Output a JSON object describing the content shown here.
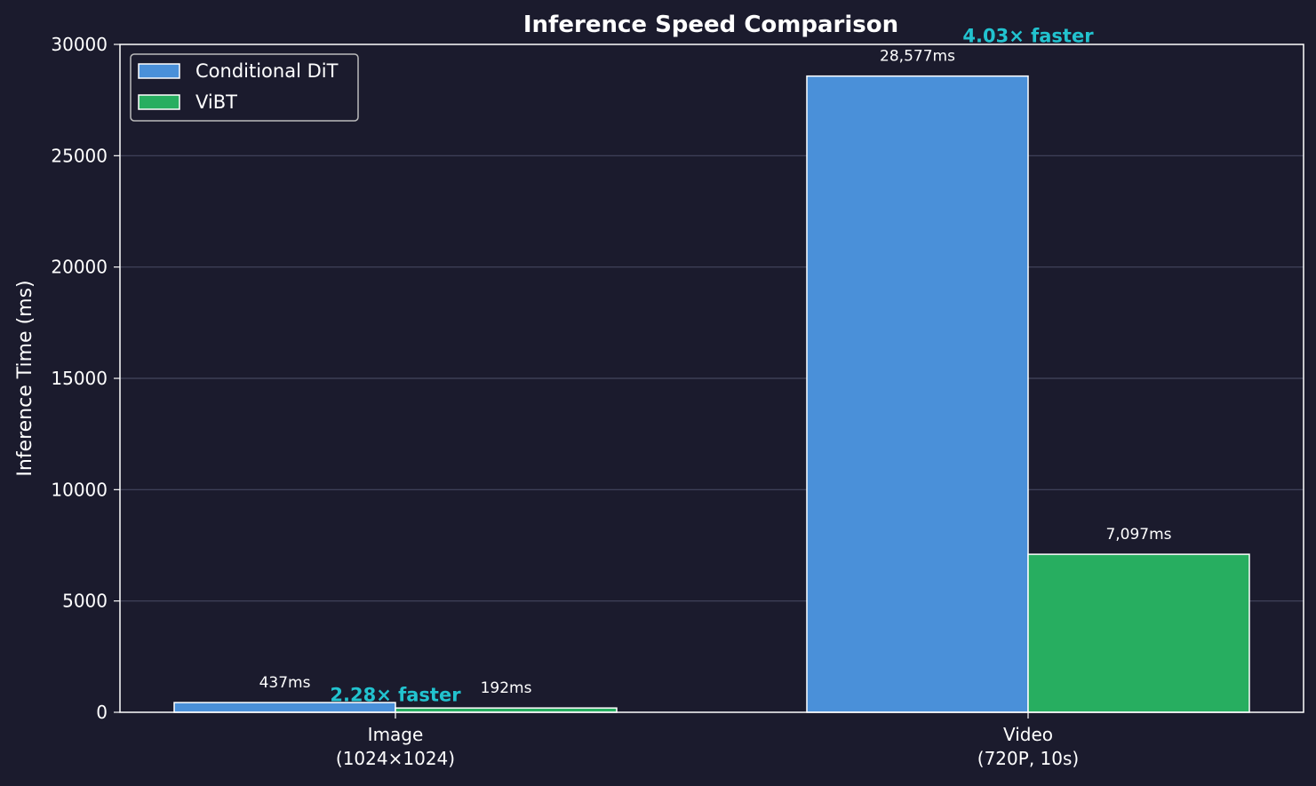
{
  "colors": {
    "background": "#1b1b2d",
    "text": "#ffffff",
    "grid": "#44465e",
    "axis": "#ffffff",
    "annotation": "#22c3cf",
    "bar_edge": "#ffffff"
  },
  "chart_data": {
    "type": "bar",
    "title": "Inference Speed Comparison",
    "xlabel": "",
    "ylabel": "Inference Time (ms)",
    "ylim": [
      0,
      30000
    ],
    "yticks": [
      0,
      5000,
      10000,
      15000,
      20000,
      25000,
      30000
    ],
    "grid": true,
    "legend_position": "top-left",
    "categories": [
      "Image\n(1024×1024)",
      "Video\n(720P, 10s)"
    ],
    "series": [
      {
        "name": "Conditional DiT",
        "color": "#4a90d9",
        "values": [
          437,
          28577
        ],
        "labels": [
          "437ms",
          "28,577ms"
        ]
      },
      {
        "name": "ViBT",
        "color": "#27ae60",
        "values": [
          192,
          7097
        ],
        "labels": [
          "192ms",
          "7,097ms"
        ]
      }
    ],
    "annotations": [
      {
        "text": "2.28× faster",
        "category_index": 0,
        "y": 500
      },
      {
        "text": "4.03× faster",
        "category_index": 1,
        "y": 30100
      }
    ]
  }
}
